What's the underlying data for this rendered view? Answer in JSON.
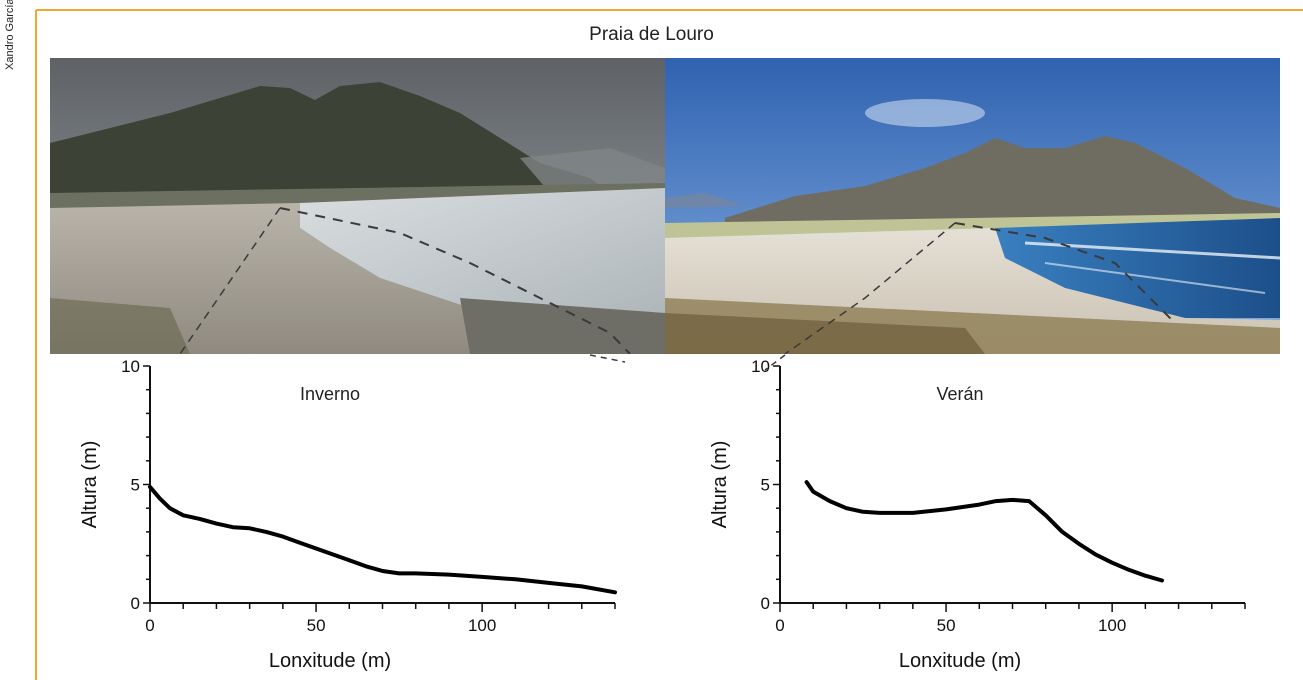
{
  "figure": {
    "title": "Praia de Louro",
    "credit": "Xandro García",
    "colors": {
      "border": "#f0a830",
      "axis": "#111111",
      "line": "#000000"
    }
  },
  "photos": [
    {
      "name": "winter-photo",
      "description_icon": "beach-photo-winter"
    },
    {
      "name": "summer-photo",
      "description_icon": "beach-photo-summer"
    }
  ],
  "chart_data": [
    {
      "type": "line",
      "title": "Inverno",
      "xlabel": "Lonxitude (m)",
      "ylabel": "Altura (m)",
      "xlim": [
        0,
        140
      ],
      "ylim": [
        0,
        10
      ],
      "xticks": [
        0,
        50,
        100
      ],
      "yticks": [
        0,
        5,
        10
      ],
      "grid": false,
      "series": [
        {
          "x": [
            0,
            3,
            6,
            10,
            15,
            20,
            25,
            30,
            35,
            40,
            45,
            50,
            55,
            60,
            65,
            70,
            75,
            80,
            90,
            100,
            110,
            120,
            130,
            140
          ],
          "y": [
            4.9,
            4.4,
            4.0,
            3.7,
            3.55,
            3.35,
            3.2,
            3.15,
            3.0,
            2.8,
            2.55,
            2.3,
            2.05,
            1.8,
            1.55,
            1.35,
            1.25,
            1.25,
            1.2,
            1.1,
            1.0,
            0.85,
            0.7,
            0.45
          ]
        }
      ]
    },
    {
      "type": "line",
      "title": "Verán",
      "xlabel": "Lonxitude (m)",
      "ylabel": "Altura (m)",
      "xlim": [
        0,
        140
      ],
      "ylim": [
        0,
        10
      ],
      "xticks": [
        0,
        50,
        100
      ],
      "yticks": [
        0,
        5,
        10
      ],
      "grid": false,
      "series": [
        {
          "x": [
            8,
            10,
            15,
            20,
            25,
            30,
            40,
            50,
            60,
            65,
            70,
            75,
            80,
            85,
            90,
            95,
            100,
            105,
            110,
            115
          ],
          "y": [
            5.1,
            4.7,
            4.3,
            4.0,
            3.85,
            3.8,
            3.8,
            3.95,
            4.15,
            4.3,
            4.35,
            4.3,
            3.7,
            3.0,
            2.5,
            2.05,
            1.7,
            1.4,
            1.15,
            0.95
          ]
        }
      ]
    }
  ]
}
